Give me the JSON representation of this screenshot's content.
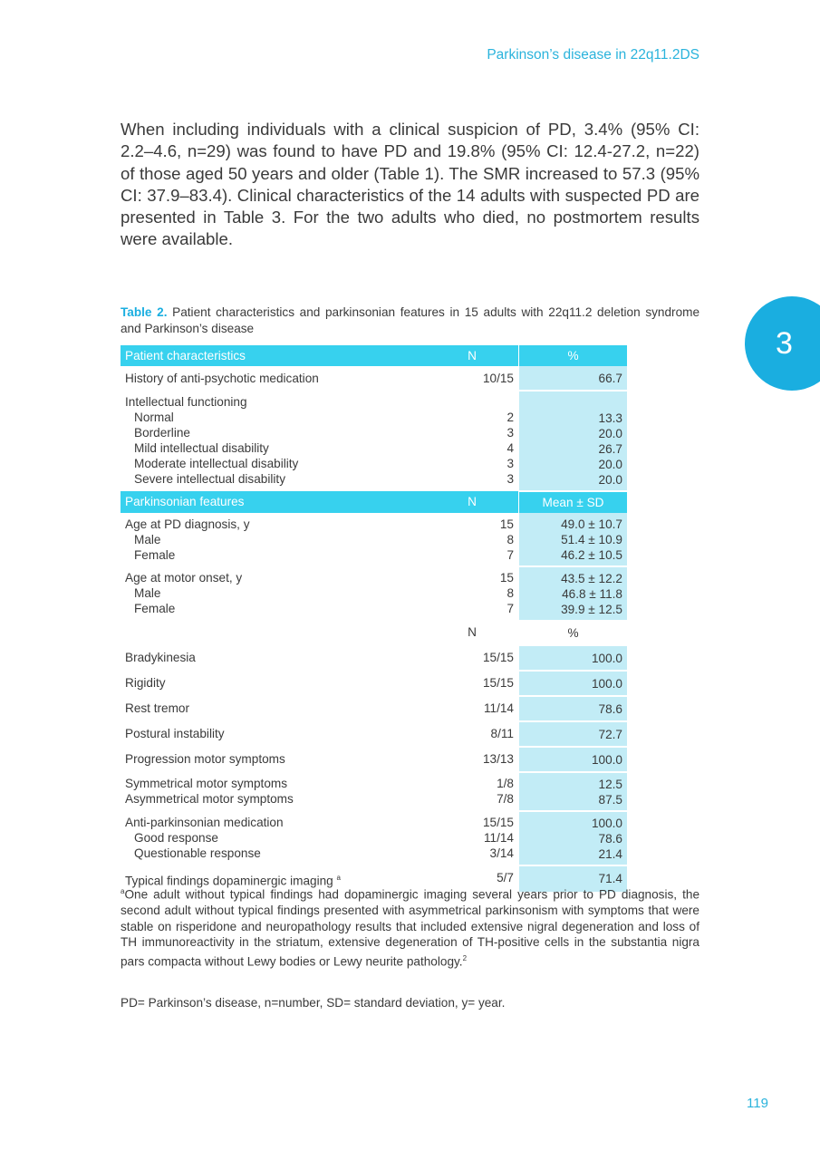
{
  "header": {
    "running_title": "Parkinson’s disease in 22q11.2DS"
  },
  "chapter_tab": "3",
  "body": {
    "paragraph": "When including individuals with a clinical suspicion of PD, 3.4% (95% CI: 2.2–4.6, n=29) was found to have PD and 19.8% (95% CI: 12.4-27.2, n=22) of those aged 50 years and older (Table 1). The SMR increased to 57.3 (95% CI: 37.9–83.4). Clinical characteristics of the 14 adults with suspected PD are presented in Table 3. For the two adults who died, no postmortem results were available."
  },
  "table": {
    "label": "Table 2.",
    "caption": "Patient characteristics and parkinsonian features in 15 adults with 22q11.2 deletion syndrome and Parkinson’s disease",
    "sections": [
      {
        "header": [
          "Patient characteristics",
          "N",
          "%"
        ],
        "groups": [
          {
            "label": "History of anti-psychotic medication",
            "n": "10/15",
            "value": "66.7"
          },
          {
            "label": "Intellectual functioning",
            "items": [
              [
                "Normal",
                "2",
                "13.3"
              ],
              [
                "Borderline",
                "3",
                "20.0"
              ],
              [
                "Mild intellectual disability",
                "4",
                "26.7"
              ],
              [
                "Moderate intellectual disability",
                "3",
                "20.0"
              ],
              [
                "Severe intellectual disability",
                "3",
                "20.0"
              ]
            ]
          }
        ]
      },
      {
        "header": [
          "Parkinsonian features",
          "N",
          "Mean ± SD"
        ],
        "groups": [
          {
            "label": "Age at PD diagnosis, y",
            "n": "15",
            "value": "49.0 ± 10.7",
            "items": [
              [
                "Male",
                "8",
                "51.4 ± 10.9"
              ],
              [
                "Female",
                "7",
                "46.2 ± 10.5"
              ]
            ]
          },
          {
            "label": "Age at motor onset, y",
            "n": "15",
            "value": "43.5 ± 12.2",
            "items": [
              [
                "Male",
                "8",
                "46.8 ± 11.8"
              ],
              [
                "Female",
                "7",
                "39.9 ± 12.5"
              ]
            ]
          }
        ]
      },
      {
        "subheader": [
          "N",
          "%"
        ],
        "groups": [
          {
            "label": "Bradykinesia",
            "n": "15/15",
            "value": "100.0"
          },
          {
            "label": "Rigidity",
            "n": "15/15",
            "value": "100.0"
          },
          {
            "label": "Rest tremor",
            "n": "11/14",
            "value": "78.6"
          },
          {
            "label": "Postural instability",
            "n": "8/11",
            "value": "72.7"
          },
          {
            "label": "Progression motor symptoms",
            "n": "13/13",
            "value": "100.0"
          },
          {
            "label": "Symmetrical motor symptoms",
            "n": "1/8",
            "value": "12.5",
            "items_flat": [
              [
                "Asymmetrical motor symptoms",
                "7/8",
                "87.5"
              ]
            ]
          },
          {
            "label": "Anti-parkinsonian medication",
            "n": "15/15",
            "value": "100.0",
            "items": [
              [
                "Good response",
                "11/14",
                "78.6"
              ],
              [
                "Questionable response",
                "3/14",
                "21.4"
              ]
            ]
          },
          {
            "label": "Typical findings dopaminergic imaging",
            "marker": "a",
            "n": "5/7",
            "value": "71.4"
          }
        ]
      }
    ]
  },
  "footnotes": {
    "marker": "a",
    "text": "One adult without typical findings had dopaminergic imaging several years prior to PD diagnosis, the second adult without typical findings presented with asymmetrical parkinsonism with symptoms that were stable on risperidone and neuropathology results that included extensive nigral degeneration and loss of TH immunoreactivity in the striatum, extensive degeneration of TH-positive cells in the substantia nigra pars compacta without Lewy bodies or Lewy neurite pathology.",
    "ref": "2",
    "abbreviations": "PD= Parkinson’s disease, n=number, SD= standard deviation, y= year."
  },
  "page_number": "119"
}
